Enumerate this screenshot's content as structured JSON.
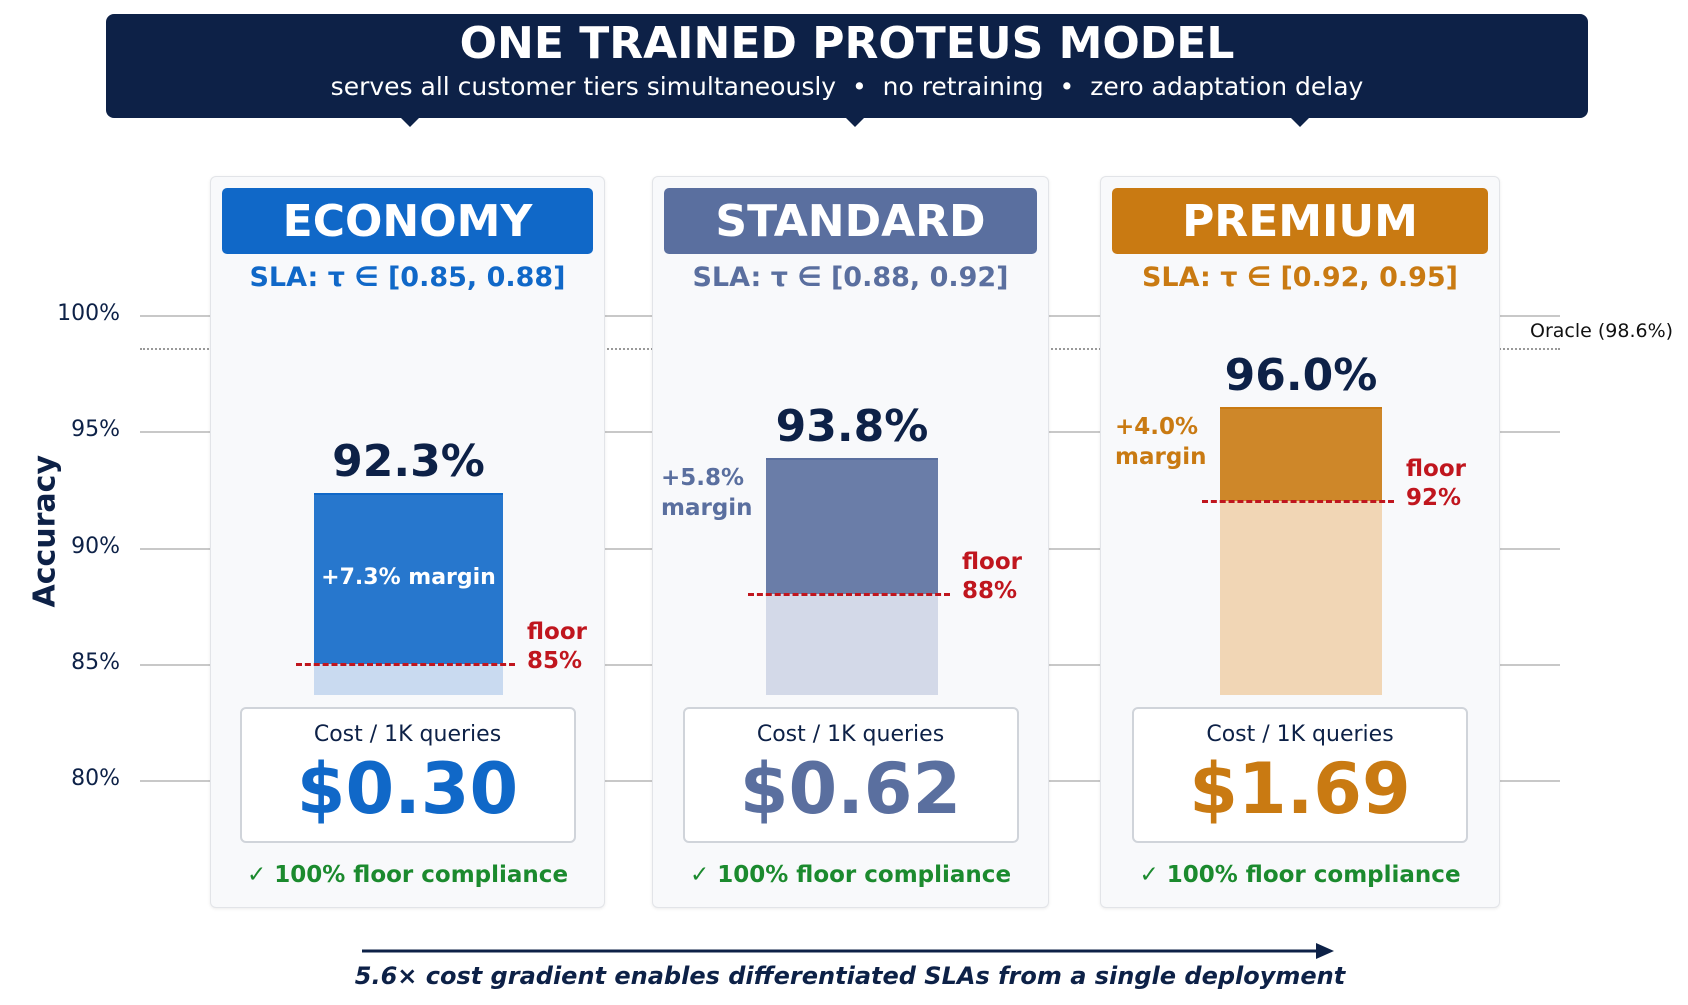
{
  "chart_data": {
    "type": "bar",
    "title": "ONE TRAINED PROTEUS MODEL",
    "subtitle": "serves all customer tiers simultaneously  •  no retraining  •  zero adaptation delay",
    "y_label": "Accuracy",
    "ylim": [
      80,
      100
    ],
    "yticks": [
      {
        "value": 80,
        "label": "80%"
      },
      {
        "value": 85,
        "label": "85%"
      },
      {
        "value": 90,
        "label": "90%"
      },
      {
        "value": 95,
        "label": "95%"
      },
      {
        "value": 100,
        "label": "100%"
      }
    ],
    "grid": true,
    "categories": [
      "ECONOMY",
      "STANDARD",
      "PREMIUM"
    ],
    "sla_labels": [
      "SLA: τ ∈ [0.85, 0.88]",
      "SLA: τ ∈ [0.88, 0.92]",
      "SLA: τ ∈ [0.92, 0.95]"
    ],
    "colors": [
      "#1068c8",
      "#5a6f9f",
      "#c97a12"
    ],
    "light_colors": [
      "#c9daf0",
      "#d3d9e8",
      "#f1d6b5"
    ],
    "accuracy": {
      "values": [
        92.3,
        93.8,
        96.0
      ],
      "value_labels": [
        "92.3%",
        "93.8%",
        "96.0%"
      ]
    },
    "floor": {
      "values": [
        85,
        88,
        92
      ],
      "value_labels": [
        "floor 85%",
        "floor 88%",
        "floor 92%"
      ],
      "color": "#c0161e"
    },
    "margin": {
      "values": [
        7.3,
        5.8,
        4.0
      ],
      "value_labels": [
        "+7.3% margin",
        "+5.8% margin",
        "+4.0% margin"
      ]
    },
    "oracle": {
      "value": 98.6,
      "label": "Oracle (98.6%)"
    },
    "cost": {
      "label": "Cost / 1K queries",
      "values": [
        0.3,
        0.62,
        1.69
      ],
      "value_labels": [
        "$0.30",
        "$0.62",
        "$1.69"
      ]
    },
    "compliance": [
      "✓ 100% floor compliance",
      "✓ 100% floor compliance",
      "✓ 100% floor compliance"
    ],
    "footer": "5.6× cost gradient enables differentiated SLAs from a single deployment"
  }
}
